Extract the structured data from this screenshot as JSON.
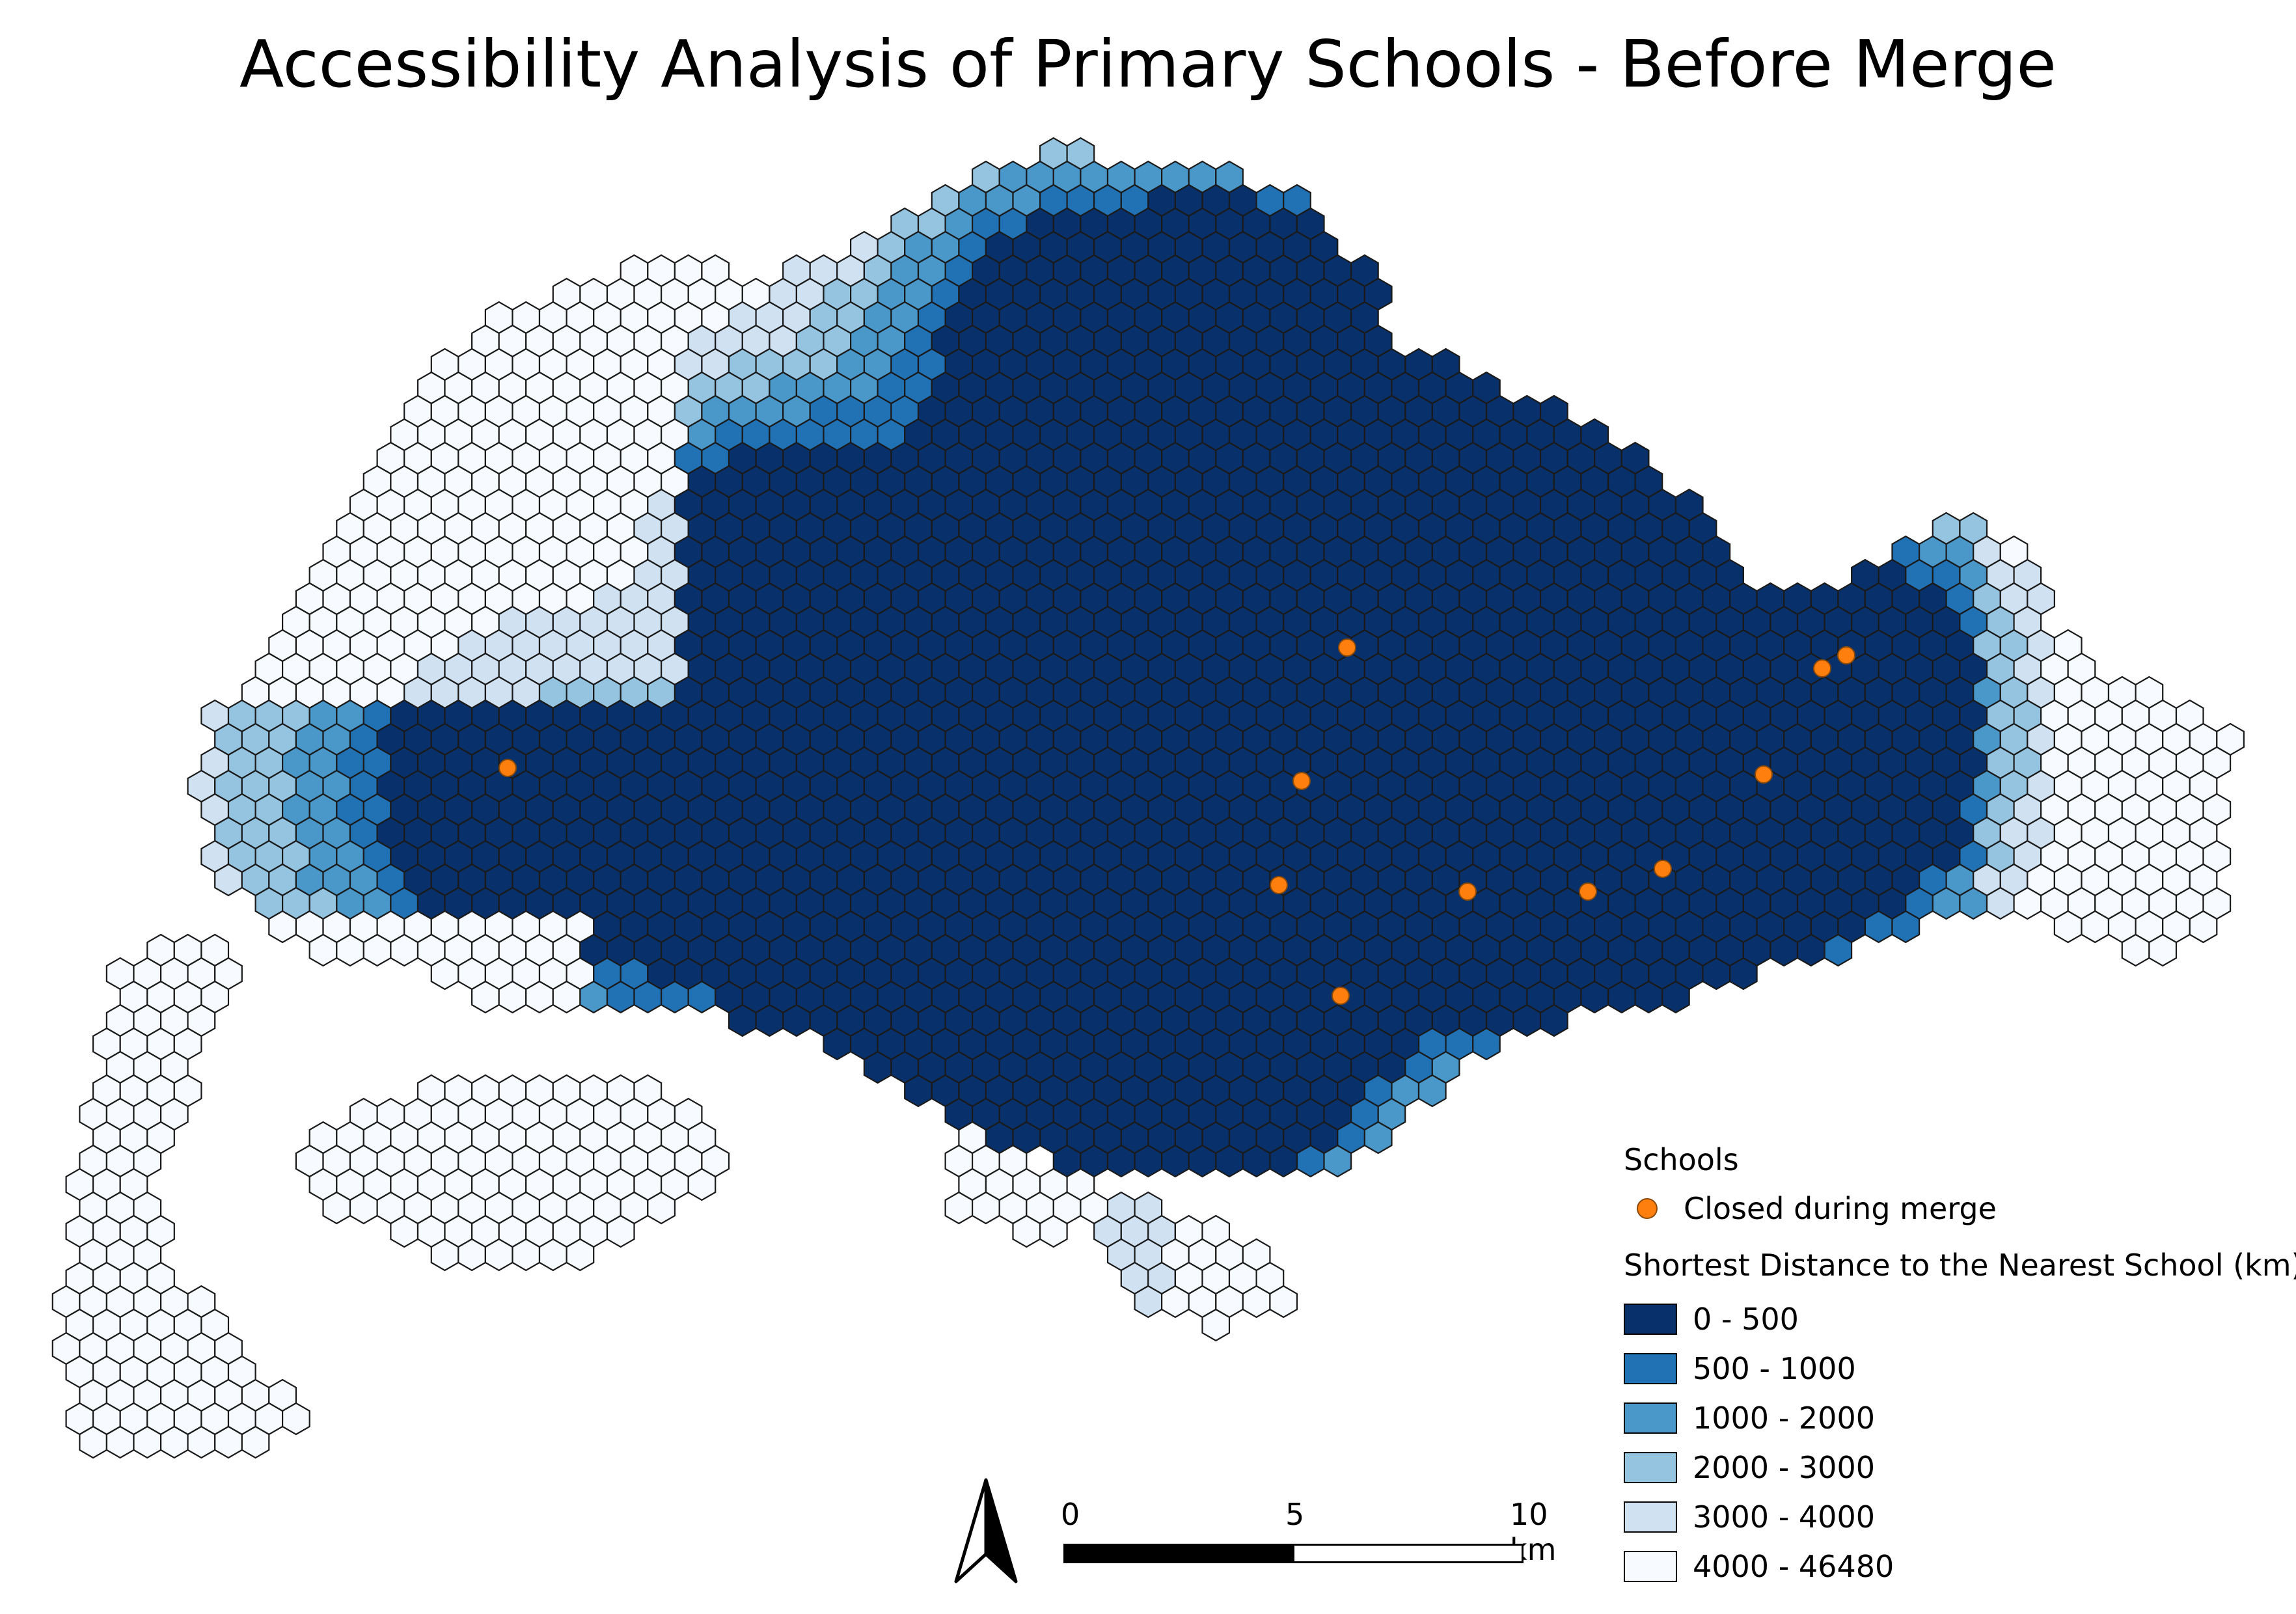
{
  "title": "Accessibility Analysis of Primary Schools - Before Merge",
  "legend": {
    "schools_heading": "Schools",
    "schools_item": "Closed during merge",
    "schools_color": "#ff7f0e",
    "distance_heading": "Shortest Distance to the Nearest School (km)",
    "classes": [
      {
        "label": "0 - 500",
        "color": "#08306b"
      },
      {
        "label": "500 - 1000",
        "color": "#2171b5"
      },
      {
        "label": "1000 - 2000",
        "color": "#4a98c9"
      },
      {
        "label": "2000 - 3000",
        "color": "#94c4df"
      },
      {
        "label": "3000 - 4000",
        "color": "#d0e1f2"
      },
      {
        "label": "4000 - 46480",
        "color": "#f7fbff"
      }
    ]
  },
  "scale_bar": {
    "label_0": "0",
    "label_5": "5",
    "label_10": "10 km"
  },
  "north_arrow_icon": "north-arrow-icon"
}
